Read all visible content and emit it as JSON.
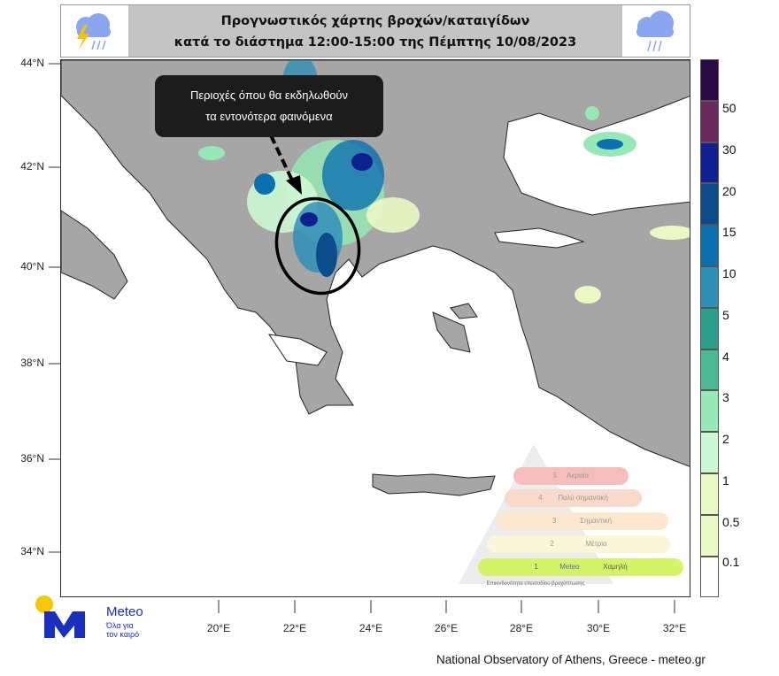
{
  "header": {
    "title_line1": "Προγνωστικός χάρτης βροχών/καταιγίδων",
    "title_line2": "κατά το διάστημα  12:00-15:00 της Πέμπτης 10/08/2023",
    "left_icon": "thunderstorm-cloud-icon",
    "right_icon": "rain-cloud-icon"
  },
  "map": {
    "lat_ticks": [
      "44°N",
      "42°N",
      "40°N",
      "38°N",
      "36°N",
      "34°N"
    ],
    "lon_ticks": [
      "20°E",
      "22°E",
      "24°E",
      "26°E",
      "28°E",
      "30°E",
      "32°E"
    ],
    "land_color": "#a6a6a6",
    "sea_color": "#ffffff"
  },
  "annotation": {
    "line1": "Περιοχές όπου θα εκδηλωθούν",
    "line2": "τα εντονότερα φαινόμενα"
  },
  "colorbar": {
    "labels": [
      "50",
      "30",
      "20",
      "15",
      "10",
      "5",
      "4",
      "3",
      "2",
      "1",
      "0.5",
      "0.1"
    ],
    "colors": [
      "#2a0a45",
      "#6a2a5e",
      "#0f1f8f",
      "#0c4c8a",
      "#0b6fb0",
      "#2f8fb8",
      "#2a9e8a",
      "#4cb894",
      "#96e8b4",
      "#ccf8d4",
      "#eaf8c4",
      "#eaf8c4",
      "#ffffff"
    ]
  },
  "risk_legend": {
    "levels": [
      {
        "num": "5",
        "label": "Ακραία",
        "color": "#f4a8a8"
      },
      {
        "num": "4",
        "label": "Πολύ σημαντική",
        "color": "#f8cdb8"
      },
      {
        "num": "3",
        "label": "Σημαντική",
        "color": "#fbe0c0"
      },
      {
        "num": "2",
        "label": "Μέτρια",
        "color": "#fcf3cc"
      },
      {
        "num": "1",
        "label": "Χαμηλή",
        "color": "#c8f034"
      }
    ],
    "caption": "Επικινδυνότητα επεισοδίου βροχόπτωσης",
    "brand": "Meteo"
  },
  "logo": {
    "name": "Meteo",
    "tagline1": "Όλα για",
    "tagline2": "τον καιρό"
  },
  "credit": "National Observatory of Athens, Greece - meteo.gr"
}
